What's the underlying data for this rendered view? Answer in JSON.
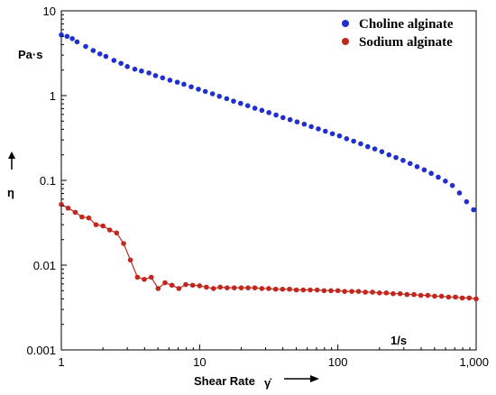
{
  "chart_data": {
    "type": "scatter",
    "x_scale": "log",
    "y_scale": "log",
    "xlim": [
      1,
      1000
    ],
    "ylim": [
      0.001,
      10
    ],
    "x_ticks": [
      1,
      10,
      100,
      1000
    ],
    "x_tick_labels": [
      "1",
      "10",
      "100",
      "1,000"
    ],
    "y_ticks": [
      0.001,
      0.01,
      0.1,
      1,
      10
    ],
    "y_tick_labels": [
      "0.001",
      "0.01",
      "0.1",
      "1",
      "10"
    ],
    "xlabel": "Shear Rate",
    "xlabel_symbol": "γ̇",
    "x_unit": "1/s",
    "ylabel": "η",
    "y_unit": "Pa·s",
    "legend_position": "top-right",
    "grid": false,
    "series": [
      {
        "name": "Choline alginate",
        "color": "#1f2fd0",
        "connect": false,
        "x": [
          1,
          1.1,
          1.2,
          1.3,
          1.5,
          1.7,
          1.9,
          2.1,
          2.4,
          2.7,
          3.0,
          3.4,
          3.8,
          4.3,
          4.8,
          5.4,
          6.1,
          6.9,
          7.7,
          8.7,
          9.8,
          11,
          12.4,
          13.9,
          15.7,
          17.6,
          19.8,
          22.3,
          25.1,
          28.2,
          31.7,
          35.7,
          40.1,
          45.1,
          50.7,
          57.1,
          64.2,
          72.2,
          81.2,
          91.3,
          102.7,
          115.6,
          130,
          146.2,
          164.4,
          184.9,
          208,
          234,
          263,
          296,
          333,
          374,
          421,
          473,
          532,
          599,
          673,
          757,
          852,
          958
        ],
        "y": [
          5.2,
          5.0,
          4.7,
          4.3,
          3.8,
          3.4,
          3.1,
          2.9,
          2.6,
          2.4,
          2.2,
          2.05,
          1.95,
          1.85,
          1.72,
          1.62,
          1.52,
          1.44,
          1.36,
          1.27,
          1.19,
          1.12,
          1.05,
          0.98,
          0.92,
          0.86,
          0.81,
          0.76,
          0.71,
          0.67,
          0.63,
          0.59,
          0.55,
          0.52,
          0.49,
          0.46,
          0.43,
          0.405,
          0.38,
          0.355,
          0.335,
          0.31,
          0.29,
          0.27,
          0.25,
          0.235,
          0.218,
          0.2,
          0.186,
          0.172,
          0.158,
          0.145,
          0.133,
          0.121,
          0.109,
          0.098,
          0.087,
          0.071,
          0.056,
          0.045
        ]
      },
      {
        "name": "Sodium alginate",
        "color": "#c0281e",
        "connect": true,
        "x": [
          1,
          1.12,
          1.26,
          1.41,
          1.58,
          1.78,
          2.0,
          2.24,
          2.51,
          2.82,
          3.16,
          3.55,
          3.98,
          4.47,
          5.01,
          5.62,
          6.31,
          7.08,
          7.94,
          8.91,
          10,
          11.2,
          12.6,
          14.1,
          15.8,
          17.8,
          20,
          22.4,
          25.1,
          28.2,
          31.6,
          35.5,
          39.8,
          44.7,
          50.1,
          56.2,
          63.1,
          70.8,
          79.4,
          89.1,
          100,
          112,
          126,
          141,
          158,
          178,
          200,
          224,
          251,
          282,
          316,
          355,
          398,
          447,
          501,
          562,
          631,
          708,
          794,
          891,
          1000
        ],
        "y": [
          0.052,
          0.047,
          0.042,
          0.037,
          0.036,
          0.03,
          0.029,
          0.026,
          0.024,
          0.018,
          0.0115,
          0.0072,
          0.0068,
          0.0072,
          0.0053,
          0.0062,
          0.0058,
          0.0053,
          0.0059,
          0.0058,
          0.0057,
          0.0055,
          0.0053,
          0.0055,
          0.0054,
          0.0054,
          0.0054,
          0.0054,
          0.0054,
          0.0053,
          0.0053,
          0.0052,
          0.0052,
          0.0052,
          0.0051,
          0.0051,
          0.0051,
          0.0051,
          0.005,
          0.005,
          0.005,
          0.0049,
          0.0049,
          0.0049,
          0.0048,
          0.0048,
          0.0047,
          0.0047,
          0.0046,
          0.0046,
          0.0045,
          0.0045,
          0.0044,
          0.0044,
          0.0043,
          0.0043,
          0.0042,
          0.0042,
          0.0041,
          0.0041,
          0.004
        ]
      }
    ]
  }
}
